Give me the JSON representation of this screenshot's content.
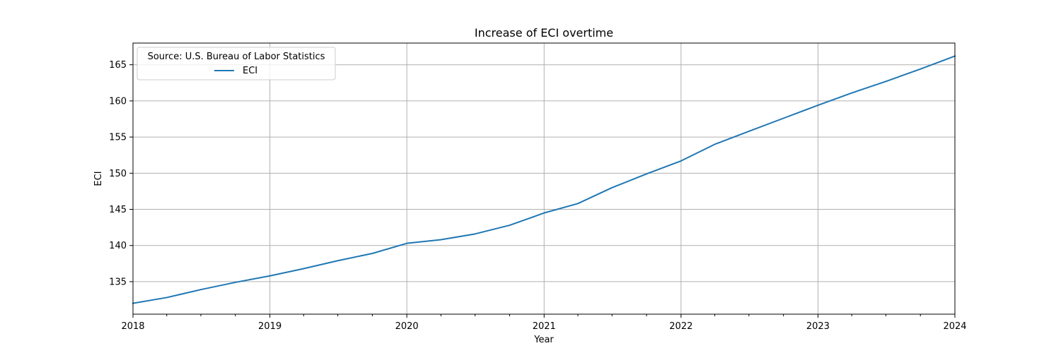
{
  "chart_data": {
    "type": "line",
    "title": "Increase of ECI overtime",
    "xlabel": "Year",
    "ylabel": "ECI",
    "xlim": [
      "2018-01-01",
      "2024-01-01"
    ],
    "ylim": [
      130.5,
      168
    ],
    "x_ticks": [
      "2018",
      "2019",
      "2020",
      "2021",
      "2022",
      "2023",
      "2024"
    ],
    "y_ticks": [
      135,
      140,
      145,
      150,
      155,
      160,
      165
    ],
    "grid": true,
    "legend": {
      "title": "Source: U.S. Bureau of Labor Statistics",
      "placement": "upper-left"
    },
    "series": [
      {
        "name": "ECI",
        "color": "#1f77b4",
        "x": [
          "2018-01-01",
          "2018-04-01",
          "2018-07-01",
          "2018-10-01",
          "2019-01-01",
          "2019-04-01",
          "2019-07-01",
          "2019-10-01",
          "2020-01-01",
          "2020-04-01",
          "2020-07-01",
          "2020-10-01",
          "2021-01-01",
          "2021-04-01",
          "2021-07-01",
          "2021-10-01",
          "2022-01-01",
          "2022-04-01",
          "2022-07-01",
          "2022-10-01",
          "2023-01-01",
          "2023-04-01",
          "2023-07-01",
          "2023-10-01",
          "2024-01-01"
        ],
        "y": [
          132.0,
          132.8,
          133.9,
          134.9,
          135.8,
          136.8,
          137.9,
          138.9,
          140.3,
          140.8,
          141.6,
          142.8,
          144.5,
          145.8,
          148.0,
          149.9,
          151.7,
          154.0,
          155.8,
          157.6,
          159.4,
          161.1,
          162.7,
          164.4,
          166.2
        ]
      }
    ]
  }
}
